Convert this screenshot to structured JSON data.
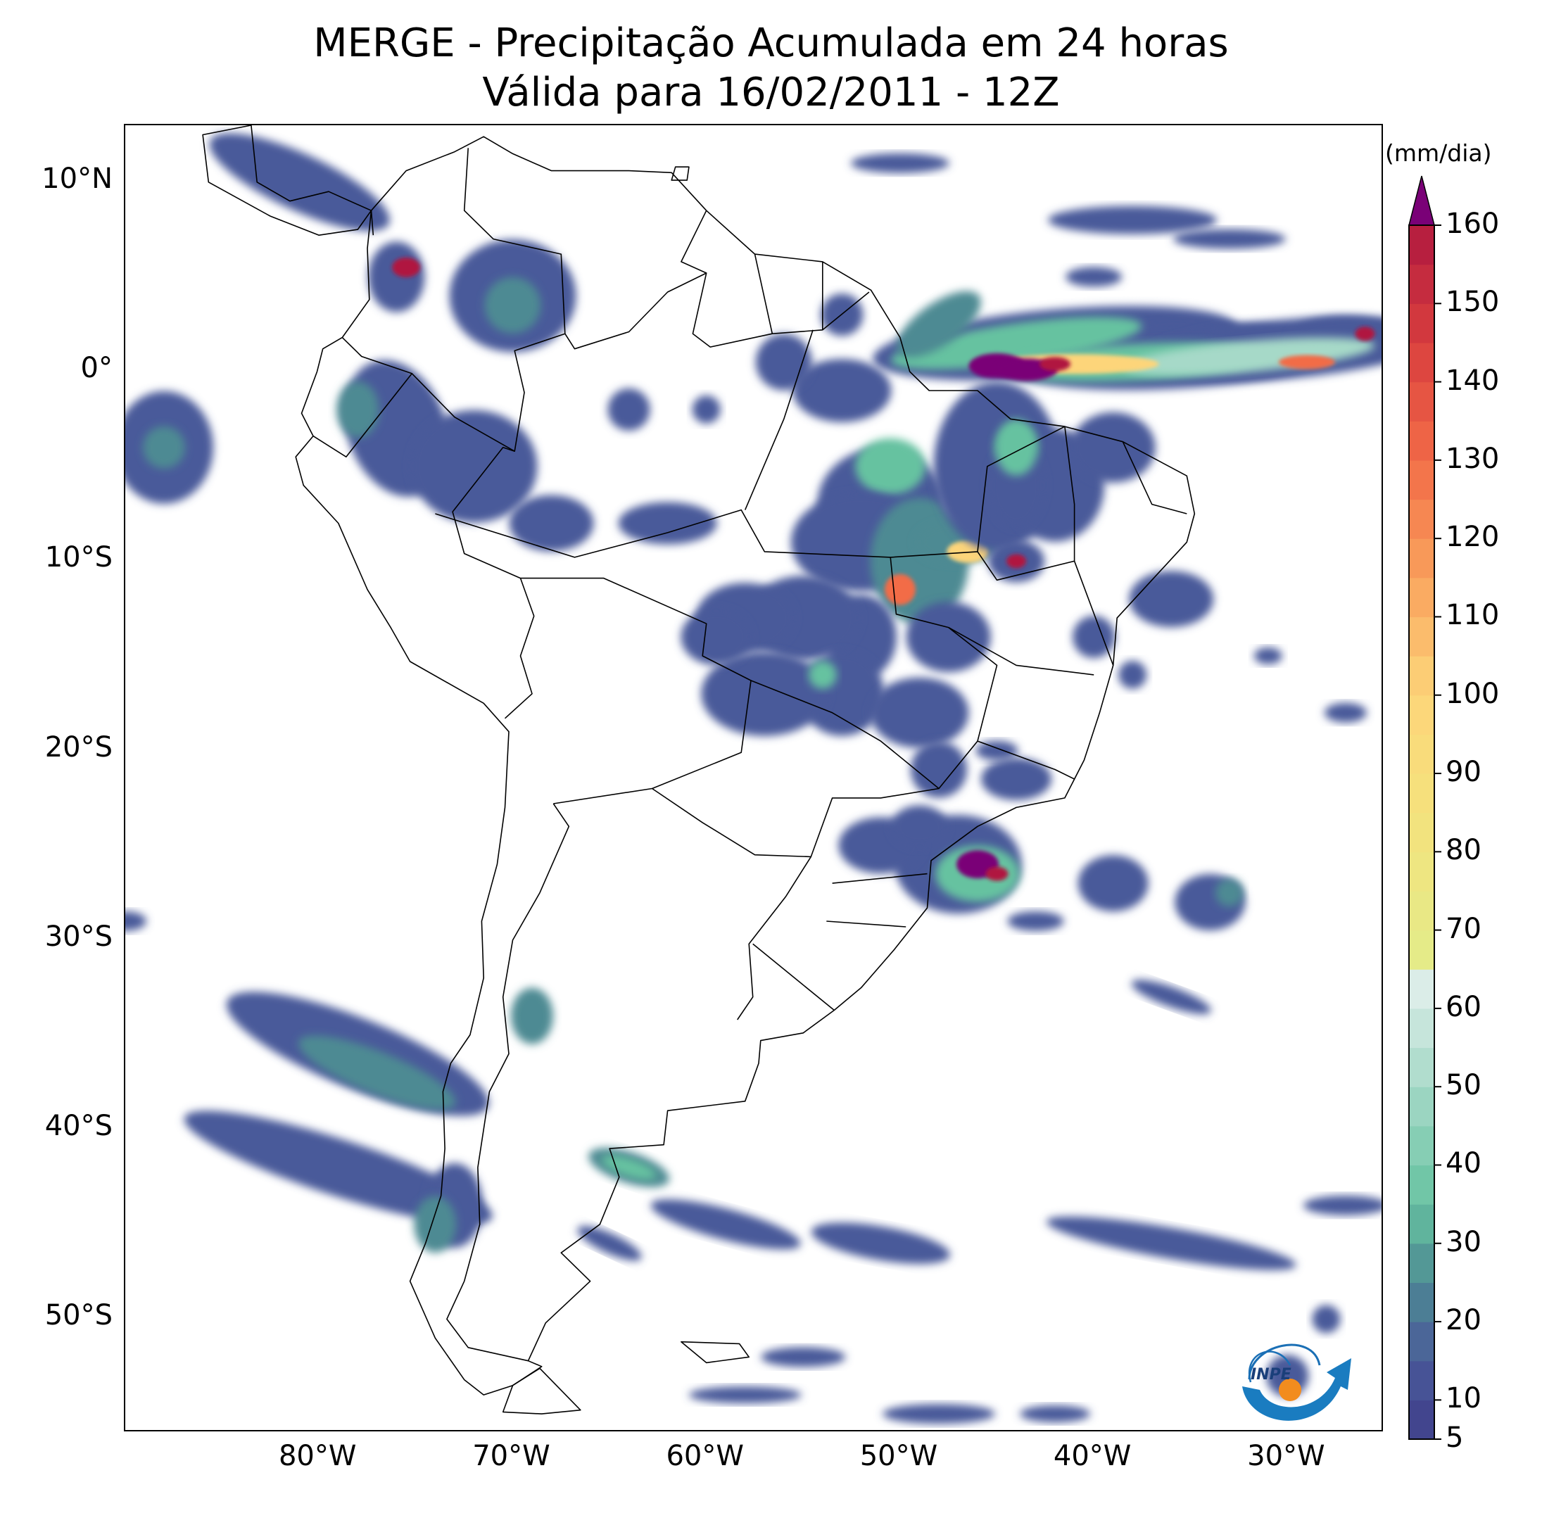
{
  "title_line1": "MERGE - Precipitação Acumulada em 24 horas",
  "title_line2": "Válida para 16/02/2011 - 12Z",
  "map": {
    "lon_range": [
      -90,
      -25
    ],
    "lat_range": [
      -56,
      13
    ],
    "lat_ticks": [
      {
        "value": 10,
        "label": "10°N"
      },
      {
        "value": 0,
        "label": "0°"
      },
      {
        "value": -10,
        "label": "10°S"
      },
      {
        "value": -20,
        "label": "20°S"
      },
      {
        "value": -30,
        "label": "30°S"
      },
      {
        "value": -40,
        "label": "40°S"
      },
      {
        "value": -50,
        "label": "50°S"
      }
    ],
    "lon_ticks": [
      {
        "value": -80,
        "label": "80°W"
      },
      {
        "value": -70,
        "label": "70°W"
      },
      {
        "value": -60,
        "label": "60°W"
      },
      {
        "value": -50,
        "label": "50°W"
      },
      {
        "value": -40,
        "label": "40°W"
      },
      {
        "value": -30,
        "label": "30°W"
      }
    ]
  },
  "colorbar": {
    "units": "(mm/dia)",
    "min": 5,
    "max": 160,
    "extend": "max",
    "extend_color": "#7a0177",
    "ticks": [
      5,
      10,
      20,
      30,
      40,
      50,
      60,
      70,
      80,
      90,
      100,
      110,
      120,
      130,
      140,
      150,
      160
    ],
    "stops": [
      {
        "value": 5,
        "color": "#3f3e8a"
      },
      {
        "value": 15,
        "color": "#4a5a9a"
      },
      {
        "value": 25,
        "color": "#4d8a93"
      },
      {
        "value": 35,
        "color": "#66c2a0"
      },
      {
        "value": 50,
        "color": "#a6d9c8"
      },
      {
        "value": 65,
        "color": "#e6f1ee"
      },
      {
        "value": 65.01,
        "color": "#e3ec8a"
      },
      {
        "value": 85,
        "color": "#f4e27c"
      },
      {
        "value": 100,
        "color": "#fdd57a"
      },
      {
        "value": 115,
        "color": "#f9a25d"
      },
      {
        "value": 130,
        "color": "#f26c47"
      },
      {
        "value": 145,
        "color": "#d93e3e"
      },
      {
        "value": 160,
        "color": "#b0193f"
      }
    ]
  },
  "logo_text": "INPE"
}
